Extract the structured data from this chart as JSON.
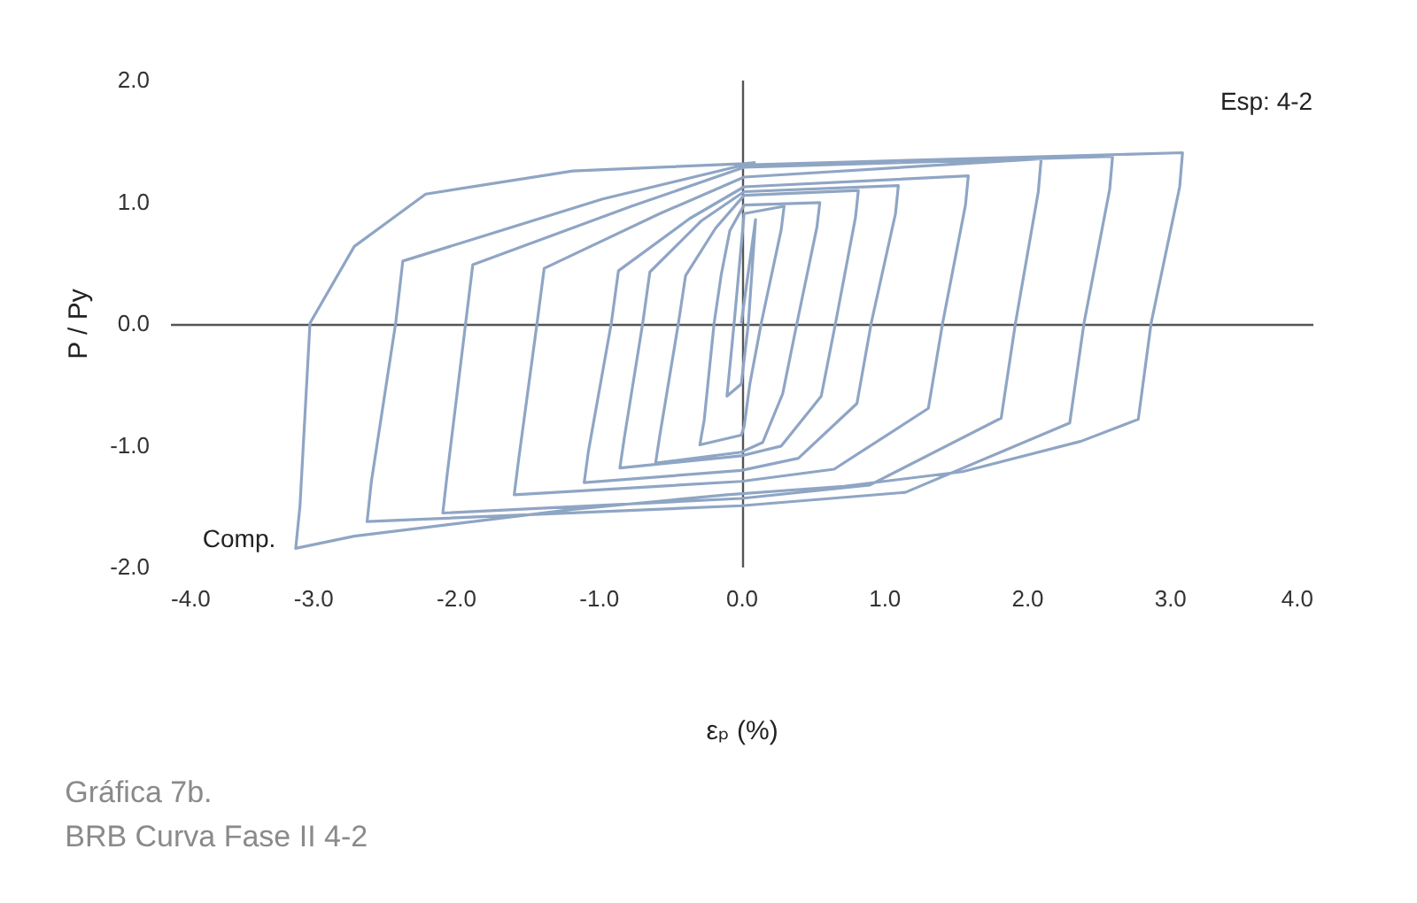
{
  "chart_data": {
    "type": "line",
    "title": "Gráfica 7b.",
    "subtitle": "BRB Curva Fase II 4-2",
    "xlabel": "εₚ (%)",
    "ylabel": "P / Py",
    "annotations": [
      "Esp: 4-2",
      "Comp."
    ],
    "xlim": [
      -4,
      4
    ],
    "xticks": [
      {
        "value": -4,
        "label": "-4.0"
      },
      {
        "value": -3,
        "label": "-3.0"
      },
      {
        "value": -2,
        "label": "-2.0"
      },
      {
        "value": -1,
        "label": "-1.0"
      },
      {
        "value": 0,
        "label": "0.0"
      },
      {
        "value": 1,
        "label": "1.0"
      },
      {
        "value": 2,
        "label": "2.0"
      },
      {
        "value": 3,
        "label": "3.0"
      },
      {
        "value": 4,
        "label": "4.0"
      }
    ],
    "ylim": [
      -2,
      2
    ],
    "yticks": [
      {
        "value": -2,
        "label": "-2.0"
      },
      {
        "value": -1,
        "label": "-1.0"
      },
      {
        "value": 0,
        "label": "0.0"
      },
      {
        "value": 1,
        "label": "1.0"
      },
      {
        "value": 2,
        "label": "2.0"
      }
    ],
    "marker": "none",
    "line_style": "solid",
    "x": [
      0,
      0.1,
      0.05,
      0,
      -0.1,
      -0.05,
      0.02,
      0.3,
      0.28,
      0.14,
      0.06,
      0.02,
      0,
      -0.29,
      -0.26,
      -0.19,
      -0.14,
      -0.08,
      0.02,
      0.55,
      0.53,
      0.39,
      0.29,
      0.15,
      0,
      -0.6,
      -0.57,
      -0.44,
      -0.39,
      -0.18,
      0.02,
      0.82,
      0.8,
      0.66,
      0.56,
      0.28,
      0,
      -0.85,
      -0.82,
      -0.69,
      -0.64,
      -0.28,
      0.02,
      1.1,
      1.08,
      0.91,
      0.81,
      0.4,
      0,
      -1.1,
      -1.07,
      -0.91,
      -0.86,
      -0.36,
      0.02,
      1.59,
      1.57,
      1.41,
      1.31,
      0.65,
      0,
      -1.59,
      -1.56,
      -1.43,
      -1.38,
      -0.57,
      0.02,
      2.1,
      2.08,
      1.92,
      1.82,
      0.9,
      0,
      -2.09,
      -2.06,
      -1.93,
      -1.88,
      -0.77,
      0.02,
      2.6,
      2.58,
      2.4,
      2.3,
      1.15,
      0,
      -2.62,
      -2.59,
      -2.42,
      -2.37,
      -0.97,
      0.02,
      3.09,
      3.07,
      2.87,
      2.78,
      2.38,
      1.55,
      0.72,
      -0.1,
      -1.18,
      -2.71,
      -3.12,
      -3.09,
      -3.02,
      -2.71,
      -2.21,
      -1.18,
      0.02,
      0.1
    ],
    "series": [
      {
        "color": "#8fa5c4",
        "values": [
          0,
          0.85,
          0,
          -0.5,
          -0.6,
          0,
          0.9,
          0.96,
          0.77,
          0,
          -0.5,
          -0.85,
          -0.92,
          -1.0,
          -0.8,
          0,
          0.4,
          0.76,
          0.97,
          0.99,
          0.79,
          0,
          -0.58,
          -0.98,
          -1.06,
          -1.15,
          -0.92,
          0,
          0.39,
          0.78,
          1.05,
          1.09,
          0.87,
          0,
          -0.6,
          -1.01,
          -1.09,
          -1.19,
          -0.95,
          0,
          0.42,
          0.84,
          1.08,
          1.13,
          0.9,
          0,
          -0.66,
          -1.11,
          -1.21,
          -1.31,
          -1.05,
          0,
          0.43,
          0.86,
          1.12,
          1.21,
          0.97,
          0,
          -0.7,
          -1.2,
          -1.3,
          -1.41,
          -1.13,
          0,
          0.45,
          0.9,
          1.2,
          1.35,
          1.08,
          0,
          -0.78,
          -1.33,
          -1.44,
          -1.56,
          -1.25,
          0,
          0.48,
          0.96,
          1.28,
          1.37,
          1.1,
          0,
          -0.82,
          -1.39,
          -1.5,
          -1.63,
          -1.3,
          0,
          0.51,
          1.02,
          1.3,
          1.4,
          1.12,
          0,
          -0.79,
          -0.97,
          -1.22,
          -1.34,
          -1.41,
          -1.53,
          -1.75,
          -1.85,
          -1.5,
          0,
          0.63,
          1.06,
          1.25,
          1.31,
          1.32
        ]
      }
    ]
  }
}
